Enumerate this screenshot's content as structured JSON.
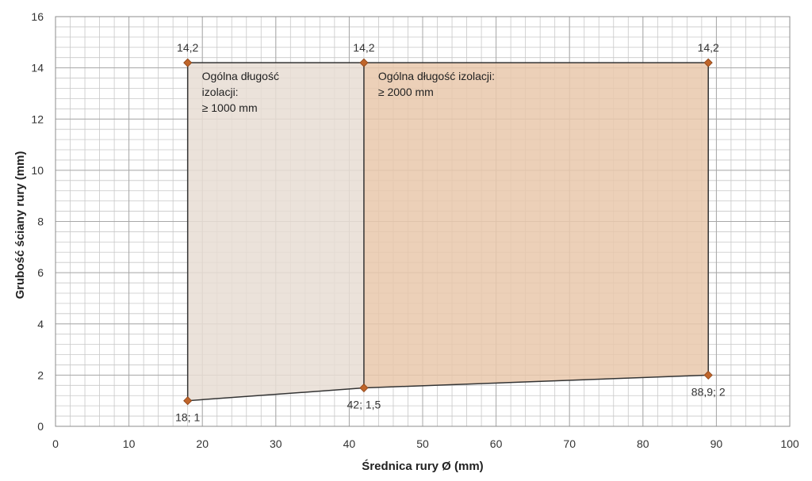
{
  "chart_data": {
    "type": "area",
    "xlabel": "Średnica rury Ø (mm)",
    "ylabel": "Grubość ściany rury (mm)",
    "xlim": [
      0,
      100
    ],
    "ylim": [
      0,
      16
    ],
    "x_ticks": [
      0,
      10,
      20,
      30,
      40,
      50,
      60,
      70,
      80,
      90,
      100
    ],
    "y_ticks": [
      0,
      2,
      4,
      6,
      8,
      10,
      12,
      14,
      16
    ],
    "x_tick_labels": [
      "0",
      "10",
      "20",
      "30",
      "40",
      "50",
      "60",
      "70",
      "80",
      "90",
      "100"
    ],
    "y_tick_labels": [
      "0",
      "2",
      "4",
      "6",
      "8",
      "10",
      "12",
      "14",
      "16"
    ],
    "grid": true,
    "minor_grid_x_step": 2,
    "minor_grid_y_step": 0.4,
    "regions": [
      {
        "label_lines": [
          "Ogólna długość",
          "izolacji:",
          "≥ 1000 mm"
        ],
        "color": "#e8ddd4",
        "polygon": [
          [
            18,
            1
          ],
          [
            18,
            14.2
          ],
          [
            42,
            14.2
          ],
          [
            42,
            1.5
          ]
        ]
      },
      {
        "label_lines": [
          "Ogólna długość izolacji:",
          "≥ 2000 mm"
        ],
        "color": "#e9c8ac",
        "polygon": [
          [
            42,
            1.5
          ],
          [
            42,
            14.2
          ],
          [
            88.9,
            14.2
          ],
          [
            88.9,
            2
          ]
        ]
      }
    ],
    "points": [
      {
        "x": 18,
        "y": 14.2,
        "label": "14,2"
      },
      {
        "x": 42,
        "y": 14.2,
        "label": "14,2"
      },
      {
        "x": 88.9,
        "y": 14.2,
        "label": "14,2"
      },
      {
        "x": 18,
        "y": 1,
        "label": "18; 1"
      },
      {
        "x": 42,
        "y": 1.5,
        "label": "42; 1,5"
      },
      {
        "x": 88.9,
        "y": 2,
        "label": "88,9; 2"
      }
    ],
    "marker_color": "#c0652a",
    "line_color": "#333333",
    "grid_color": "#c8c8c8"
  }
}
